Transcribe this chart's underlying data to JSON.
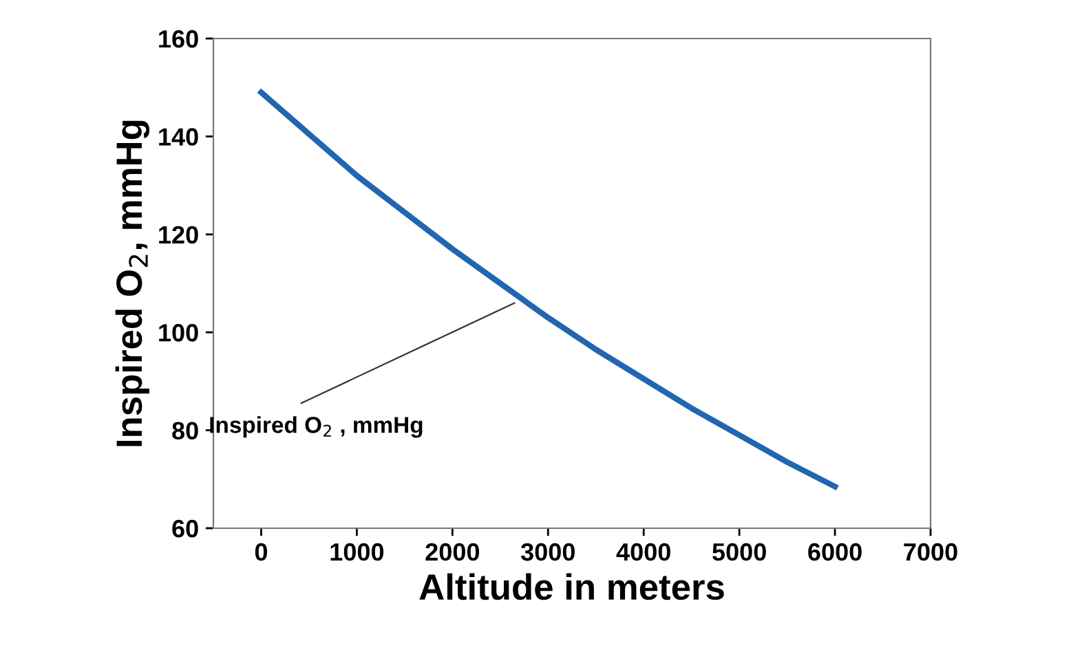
{
  "chart_data": {
    "type": "line",
    "xlabel": "Altitude in meters",
    "ylabel": "Inspired O$_{2}$, mmHg",
    "x": [
      0,
      500,
      1000,
      1500,
      2000,
      2500,
      3000,
      3500,
      4000,
      4500,
      5000,
      5500,
      6000
    ],
    "series": [
      {
        "color": "#2066b0",
        "values": [
          149,
          140.5,
          132,
          124.5,
          117,
          110,
          103,
          96.5,
          90.5,
          84.5,
          79,
          73.5,
          68.5
        ]
      }
    ],
    "xlim": [
      -500,
      7000
    ],
    "xticks": [
      0,
      1000,
      2000,
      3000,
      4000,
      5000,
      6000,
      7000
    ],
    "ylim": [
      60,
      160
    ],
    "yticks": [
      60,
      80,
      100,
      120,
      140,
      160
    ],
    "annotations": [
      {
        "text": "Inspired O$_{2}$ , mmHg",
        "x": 2650,
        "y": 106
      }
    ],
    "grid": false,
    "legend": false,
    "marker": "none",
    "line_style": "solid"
  }
}
